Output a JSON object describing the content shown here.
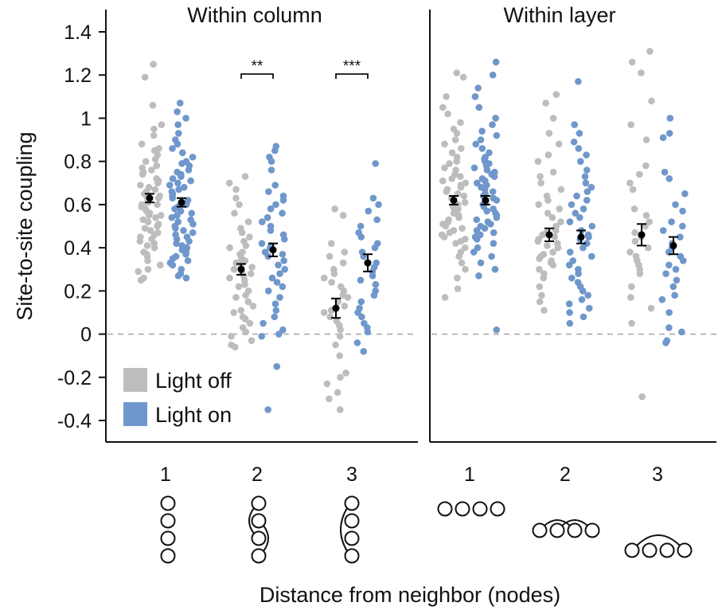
{
  "chart_data": {
    "type": "scatter",
    "ylabel": "Site-to-site coupling",
    "xlabel": "Distance from neighbor (nodes)",
    "ylim": [
      -0.45,
      1.45
    ],
    "yticks": [
      "-0.4",
      "-0.2",
      "0",
      "0.2",
      "0.4",
      "0.6",
      "0.8",
      "1",
      "1.2",
      "1.4"
    ],
    "reference_line": 0,
    "colors": {
      "light_off": "#bdbdbd",
      "light_on": "#6f97cb",
      "mean": "#000000",
      "zero_line": "#aaaaaa"
    },
    "legend": {
      "position": "bottom-left",
      "entries": [
        "Light off",
        "Light on"
      ]
    },
    "panels": [
      {
        "title": "Within column",
        "categories": [
          "1",
          "2",
          "3"
        ],
        "node_diagrams": [
          "vertical-chain",
          "vertical-chain-skip-1",
          "vertical-chain-skip-2"
        ],
        "significance": [
          {
            "category": "2",
            "label": "**"
          },
          {
            "category": "3",
            "label": "***"
          }
        ],
        "series": [
          {
            "name": "Light off",
            "summary": [
              {
                "category": "1",
                "mean": 0.63,
                "sem": 0.02
              },
              {
                "category": "2",
                "mean": 0.3,
                "sem": 0.025
              },
              {
                "category": "3",
                "mean": 0.12,
                "sem": 0.045
              }
            ],
            "points": [
              {
                "category": "1",
                "values": [
                  1.25,
                  1.19,
                  1.06,
                  0.97,
                  0.95,
                  0.92,
                  0.88,
                  0.86,
                  0.85,
                  0.83,
                  0.81,
                  0.8,
                  0.78,
                  0.77,
                  0.76,
                  0.75,
                  0.74,
                  0.72,
                  0.71,
                  0.7,
                  0.69,
                  0.68,
                  0.67,
                  0.66,
                  0.65,
                  0.64,
                  0.64,
                  0.63,
                  0.62,
                  0.61,
                  0.6,
                  0.6,
                  0.59,
                  0.58,
                  0.57,
                  0.56,
                  0.55,
                  0.55,
                  0.54,
                  0.53,
                  0.52,
                  0.51,
                  0.5,
                  0.49,
                  0.48,
                  0.47,
                  0.46,
                  0.45,
                  0.44,
                  0.43,
                  0.42,
                  0.41,
                  0.4,
                  0.38,
                  0.37,
                  0.36,
                  0.34,
                  0.32,
                  0.3,
                  0.29,
                  0.26,
                  0.25
                ]
              },
              {
                "category": "2",
                "values": [
                  0.73,
                  0.7,
                  0.67,
                  0.63,
                  0.6,
                  0.56,
                  0.52,
                  0.49,
                  0.47,
                  0.45,
                  0.43,
                  0.41,
                  0.4,
                  0.38,
                  0.37,
                  0.35,
                  0.34,
                  0.33,
                  0.32,
                  0.31,
                  0.3,
                  0.29,
                  0.28,
                  0.27,
                  0.26,
                  0.25,
                  0.23,
                  0.22,
                  0.2,
                  0.18,
                  0.17,
                  0.15,
                  0.13,
                  0.11,
                  0.1,
                  0.08,
                  0.07,
                  0.05,
                  0.03,
                  0.01,
                  -0.01,
                  -0.03,
                  -0.05,
                  -0.06
                ]
              },
              {
                "category": "3",
                "values": [
                  0.58,
                  0.55,
                  0.42,
                  0.38,
                  0.36,
                  0.33,
                  0.3,
                  0.28,
                  0.26,
                  0.24,
                  0.22,
                  0.2,
                  0.18,
                  0.17,
                  0.15,
                  0.13,
                  0.11,
                  0.1,
                  0.08,
                  0.06,
                  0.04,
                  0.02,
                  -0.01,
                  -0.05,
                  -0.1,
                  -0.18,
                  -0.2,
                  -0.23,
                  -0.27,
                  -0.3,
                  -0.35
                ]
              }
            ]
          },
          {
            "name": "Light on",
            "summary": [
              {
                "category": "1",
                "mean": 0.61,
                "sem": 0.02
              },
              {
                "category": "2",
                "mean": 0.39,
                "sem": 0.03
              },
              {
                "category": "3",
                "mean": 0.33,
                "sem": 0.04
              }
            ],
            "points": [
              {
                "category": "1",
                "values": [
                  1.07,
                  1.03,
                  1.0,
                  0.97,
                  0.93,
                  0.9,
                  0.88,
                  0.86,
                  0.84,
                  0.82,
                  0.8,
                  0.79,
                  0.78,
                  0.76,
                  0.75,
                  0.74,
                  0.73,
                  0.72,
                  0.71,
                  0.7,
                  0.69,
                  0.68,
                  0.67,
                  0.66,
                  0.65,
                  0.64,
                  0.63,
                  0.62,
                  0.61,
                  0.6,
                  0.59,
                  0.58,
                  0.57,
                  0.56,
                  0.55,
                  0.54,
                  0.53,
                  0.52,
                  0.51,
                  0.5,
                  0.49,
                  0.48,
                  0.47,
                  0.46,
                  0.45,
                  0.44,
                  0.43,
                  0.42,
                  0.41,
                  0.4,
                  0.39,
                  0.38,
                  0.37,
                  0.36,
                  0.35,
                  0.34,
                  0.33,
                  0.32,
                  0.3,
                  0.28,
                  0.27,
                  0.26
                ]
              },
              {
                "category": "2",
                "values": [
                  0.87,
                  0.85,
                  0.82,
                  0.8,
                  0.76,
                  0.69,
                  0.66,
                  0.64,
                  0.62,
                  0.6,
                  0.58,
                  0.56,
                  0.54,
                  0.52,
                  0.5,
                  0.48,
                  0.46,
                  0.44,
                  0.42,
                  0.41,
                  0.4,
                  0.38,
                  0.37,
                  0.36,
                  0.34,
                  0.32,
                  0.3,
                  0.28,
                  0.26,
                  0.24,
                  0.22,
                  0.2,
                  0.17,
                  0.14,
                  0.11,
                  0.08,
                  0.05,
                  0.02,
                  0.0,
                  -0.01,
                  -0.15,
                  -0.35
                ]
              },
              {
                "category": "3",
                "values": [
                  0.79,
                  0.63,
                  0.6,
                  0.57,
                  0.53,
                  0.5,
                  0.47,
                  0.45,
                  0.42,
                  0.4,
                  0.38,
                  0.36,
                  0.33,
                  0.31,
                  0.29,
                  0.27,
                  0.25,
                  0.23,
                  0.2,
                  0.18,
                  0.15,
                  0.12,
                  0.1,
                  0.08,
                  0.05,
                  0.03,
                  0.01,
                  -0.04,
                  -0.08
                ]
              }
            ]
          }
        ]
      },
      {
        "title": "Within layer",
        "categories": [
          "1",
          "2",
          "3"
        ],
        "node_diagrams": [
          "horizontal-chain",
          "horizontal-chain-skip-1",
          "horizontal-chain-skip-2"
        ],
        "significance": [],
        "series": [
          {
            "name": "Light off",
            "summary": [
              {
                "category": "1",
                "mean": 0.62,
                "sem": 0.02
              },
              {
                "category": "2",
                "mean": 0.46,
                "sem": 0.03
              },
              {
                "category": "3",
                "mean": 0.46,
                "sem": 0.05
              }
            ],
            "points": [
              {
                "category": "1",
                "values": [
                  1.21,
                  1.19,
                  1.1,
                  1.05,
                  1.02,
                  0.98,
                  0.95,
                  0.93,
                  0.9,
                  0.88,
                  0.86,
                  0.84,
                  0.82,
                  0.8,
                  0.79,
                  0.77,
                  0.76,
                  0.74,
                  0.73,
                  0.72,
                  0.71,
                  0.7,
                  0.69,
                  0.68,
                  0.67,
                  0.66,
                  0.65,
                  0.64,
                  0.63,
                  0.62,
                  0.61,
                  0.6,
                  0.59,
                  0.58,
                  0.57,
                  0.56,
                  0.55,
                  0.54,
                  0.53,
                  0.52,
                  0.51,
                  0.5,
                  0.49,
                  0.48,
                  0.47,
                  0.46,
                  0.45,
                  0.44,
                  0.43,
                  0.42,
                  0.4,
                  0.38,
                  0.36,
                  0.33,
                  0.3,
                  0.26,
                  0.21,
                  0.17
                ]
              },
              {
                "category": "2",
                "values": [
                  1.11,
                  1.07,
                  1.0,
                  0.93,
                  0.88,
                  0.83,
                  0.8,
                  0.75,
                  0.73,
                  0.7,
                  0.67,
                  0.64,
                  0.62,
                  0.6,
                  0.58,
                  0.56,
                  0.54,
                  0.52,
                  0.5,
                  0.48,
                  0.47,
                  0.46,
                  0.45,
                  0.44,
                  0.43,
                  0.42,
                  0.41,
                  0.4,
                  0.38,
                  0.37,
                  0.36,
                  0.35,
                  0.34,
                  0.33,
                  0.32,
                  0.3,
                  0.28,
                  0.26,
                  0.22,
                  0.18,
                  0.15,
                  0.11
                ]
              },
              {
                "category": "3",
                "values": [
                  1.31,
                  1.26,
                  1.21,
                  1.08,
                  0.97,
                  0.9,
                  0.78,
                  0.74,
                  0.7,
                  0.67,
                  0.58,
                  0.55,
                  0.52,
                  0.5,
                  0.47,
                  0.45,
                  0.43,
                  0.4,
                  0.38,
                  0.36,
                  0.34,
                  0.32,
                  0.3,
                  0.28,
                  0.22,
                  0.17,
                  0.12,
                  0.05,
                  -0.29
                ]
              }
            ]
          },
          {
            "name": "Light on",
            "summary": [
              {
                "category": "1",
                "mean": 0.62,
                "sem": 0.02
              },
              {
                "category": "2",
                "mean": 0.45,
                "sem": 0.03
              },
              {
                "category": "3",
                "mean": 0.41,
                "sem": 0.04
              }
            ],
            "points": [
              {
                "category": "1",
                "values": [
                  1.26,
                  1.2,
                  1.14,
                  1.1,
                  1.05,
                  1.0,
                  0.97,
                  0.94,
                  0.92,
                  0.9,
                  0.88,
                  0.86,
                  0.84,
                  0.82,
                  0.81,
                  0.8,
                  0.79,
                  0.78,
                  0.77,
                  0.76,
                  0.75,
                  0.74,
                  0.73,
                  0.72,
                  0.71,
                  0.7,
                  0.69,
                  0.68,
                  0.67,
                  0.66,
                  0.65,
                  0.64,
                  0.63,
                  0.62,
                  0.61,
                  0.6,
                  0.59,
                  0.58,
                  0.57,
                  0.56,
                  0.55,
                  0.54,
                  0.53,
                  0.52,
                  0.51,
                  0.5,
                  0.49,
                  0.48,
                  0.47,
                  0.46,
                  0.45,
                  0.44,
                  0.42,
                  0.4,
                  0.38,
                  0.36,
                  0.33,
                  0.3,
                  0.27,
                  0.02
                ]
              },
              {
                "category": "2",
                "values": [
                  1.17,
                  0.97,
                  0.93,
                  0.89,
                  0.86,
                  0.83,
                  0.8,
                  0.76,
                  0.73,
                  0.7,
                  0.68,
                  0.66,
                  0.64,
                  0.62,
                  0.6,
                  0.58,
                  0.56,
                  0.54,
                  0.52,
                  0.5,
                  0.48,
                  0.46,
                  0.45,
                  0.44,
                  0.42,
                  0.4,
                  0.38,
                  0.36,
                  0.34,
                  0.32,
                  0.3,
                  0.28,
                  0.26,
                  0.24,
                  0.22,
                  0.2,
                  0.18,
                  0.16,
                  0.14,
                  0.12,
                  0.1,
                  0.08,
                  0.05
                ]
              },
              {
                "category": "3",
                "values": [
                  1.0,
                  0.93,
                  0.91,
                  0.75,
                  0.72,
                  0.65,
                  0.6,
                  0.57,
                  0.52,
                  0.5,
                  0.48,
                  0.45,
                  0.42,
                  0.4,
                  0.38,
                  0.36,
                  0.34,
                  0.32,
                  0.3,
                  0.28,
                  0.25,
                  0.22,
                  0.18,
                  0.16,
                  0.1,
                  0.03,
                  0.01,
                  -0.03,
                  -0.04
                ]
              }
            ]
          }
        ]
      }
    ]
  }
}
